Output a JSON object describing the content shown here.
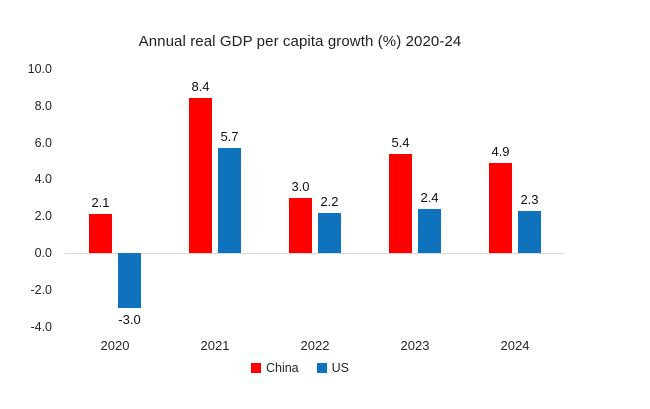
{
  "chart_data": {
    "type": "bar",
    "title": "Annual real GDP per capita growth (%) 2020-24",
    "categories": [
      "2020",
      "2021",
      "2022",
      "2023",
      "2024"
    ],
    "series": [
      {
        "name": "China",
        "color": "#ff0000",
        "values": [
          2.1,
          8.4,
          3.0,
          5.4,
          4.9
        ]
      },
      {
        "name": "US",
        "color": "#0e72bd",
        "values": [
          -3.0,
          5.7,
          2.2,
          2.4,
          2.3
        ]
      }
    ],
    "value_label_format": "one_decimal",
    "xlabel": "",
    "ylabel": "",
    "ylim": [
      -4.0,
      10.0
    ],
    "ytick_step": 2.0,
    "yticks": [
      "10.0",
      "8.0",
      "6.0",
      "4.0",
      "2.0",
      "0.0",
      "-2.0",
      "-4.0"
    ],
    "grid": false,
    "legend_position": "bottom"
  },
  "colors": {
    "background": "#ffffff",
    "axis_line": "#d9d9d9",
    "text": "#262626"
  }
}
